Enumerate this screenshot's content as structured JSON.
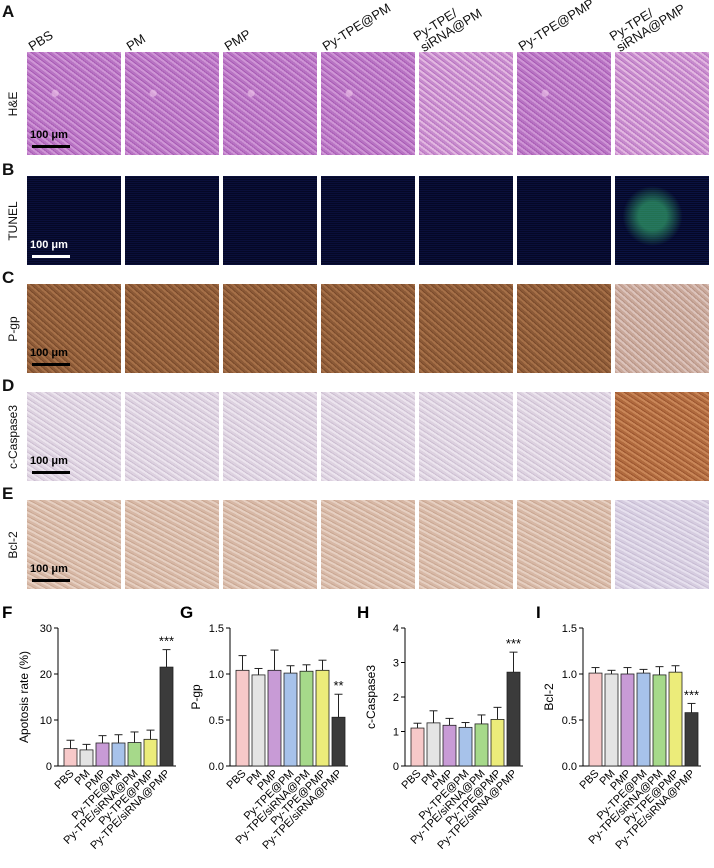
{
  "panels": {
    "A": "A",
    "B": "B",
    "C": "C",
    "D": "D",
    "E": "E",
    "F": "F",
    "G": "G",
    "H": "H",
    "I": "I"
  },
  "groups": [
    "PBS",
    "PM",
    "PMP",
    "Py-TPE@PM",
    "Py-TPE/\nsiRNA@PM",
    "Py-TPE@PMP",
    "Py-TPE/\nsiRNA@PMP"
  ],
  "rows": [
    "H&E",
    "TUNEL",
    "P-gp",
    "c-Caspase3",
    "Bcl-2"
  ],
  "scale_bar": "100 μm",
  "colors": {
    "PBS": "#f7c9c9",
    "PM": "#e4e4e4",
    "PMP": "#c89bd6",
    "Py-TPE@PM": "#a7c2ea",
    "Py-TPE/siRNA@PM": "#a6d98a",
    "Py-TPE@PMP": "#ecec7a",
    "Py-TPE/siRNA@PMP": "#3b3b3b"
  },
  "chart_data": [
    {
      "type": "bar",
      "categories": [
        "PBS",
        "PM",
        "PMP",
        "Py-TPE@PM",
        "Py-TPE/siRNA@PM",
        "Py-TPE@PMP",
        "Py-TPE/siRNA@PMP"
      ],
      "values": [
        3.8,
        3.5,
        5.0,
        5.0,
        5.1,
        5.8,
        21.5
      ],
      "errors": [
        1.8,
        1.2,
        1.6,
        1.8,
        2.3,
        2.0,
        3.8
      ],
      "ylabel": "Apotosis rate (%)",
      "ylim": [
        0,
        30
      ],
      "yticks": [
        "0",
        "10",
        "20",
        "30"
      ],
      "annotation": "***"
    },
    {
      "type": "bar",
      "categories": [
        "PBS",
        "PM",
        "PMP",
        "Py-TPE@PM",
        "Py-TPE/siRNA@PM",
        "Py-TPE@PMP",
        "Py-TPE/siRNA@PMP"
      ],
      "values": [
        1.04,
        0.99,
        1.04,
        1.01,
        1.03,
        1.04,
        0.53
      ],
      "errors": [
        0.16,
        0.07,
        0.22,
        0.08,
        0.07,
        0.11,
        0.25
      ],
      "ylabel": "P-gp",
      "ylim": [
        0,
        1.5
      ],
      "yticks": [
        "0.0",
        "0.5",
        "1.0",
        "1.5"
      ],
      "annotation": "**"
    },
    {
      "type": "bar",
      "categories": [
        "PBS",
        "PM",
        "PMP",
        "Py-TPE@PM",
        "Py-TPE/siRNA@PM",
        "Py-TPE@PMP",
        "Py-TPE/siRNA@PMP"
      ],
      "values": [
        1.1,
        1.25,
        1.18,
        1.12,
        1.22,
        1.35,
        2.72
      ],
      "errors": [
        0.14,
        0.35,
        0.2,
        0.14,
        0.26,
        0.35,
        0.58
      ],
      "ylabel": "c-Caspase3",
      "ylim": [
        0,
        4
      ],
      "yticks": [
        "0",
        "1",
        "2",
        "3",
        "4"
      ],
      "annotation": "***"
    },
    {
      "type": "bar",
      "categories": [
        "PBS",
        "PM",
        "PMP",
        "Py-TPE@PM",
        "Py-TPE/siRNA@PM",
        "Py-TPE@PMP",
        "Py-TPE/siRNA@PMP"
      ],
      "values": [
        1.01,
        1.0,
        1.0,
        1.01,
        0.99,
        1.02,
        0.58
      ],
      "errors": [
        0.06,
        0.04,
        0.07,
        0.04,
        0.09,
        0.07,
        0.1
      ],
      "ylabel": "Bcl-2",
      "ylim": [
        0,
        1.5
      ],
      "yticks": [
        "0.0",
        "0.5",
        "1.0",
        "1.5"
      ],
      "annotation": "***"
    }
  ]
}
